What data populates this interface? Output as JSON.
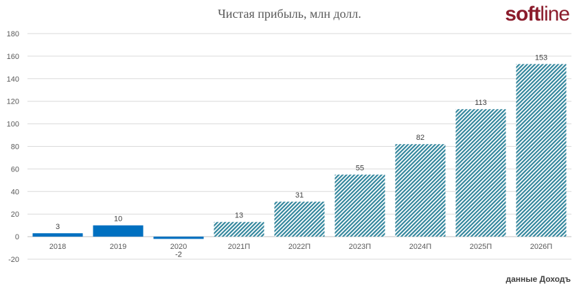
{
  "chart_data": {
    "type": "bar",
    "title": "Чистая прибыль, млн долл.",
    "categories": [
      "2018",
      "2019",
      "2020",
      "2021П",
      "2022П",
      "2023П",
      "2024П",
      "2025П",
      "2026П"
    ],
    "values": [
      3,
      10,
      -2,
      13,
      31,
      55,
      82,
      113,
      153
    ],
    "forecast": [
      false,
      false,
      false,
      true,
      true,
      true,
      true,
      true,
      true
    ],
    "ylim": [
      -20,
      180
    ],
    "yticks": [
      -20,
      0,
      20,
      40,
      60,
      80,
      100,
      120,
      140,
      160,
      180
    ],
    "grid": true,
    "colors": {
      "actual": "#0070c0",
      "forecast": "#31859c"
    }
  },
  "logo": {
    "bold": "soft",
    "light": "line"
  },
  "source": "данные Доходъ"
}
